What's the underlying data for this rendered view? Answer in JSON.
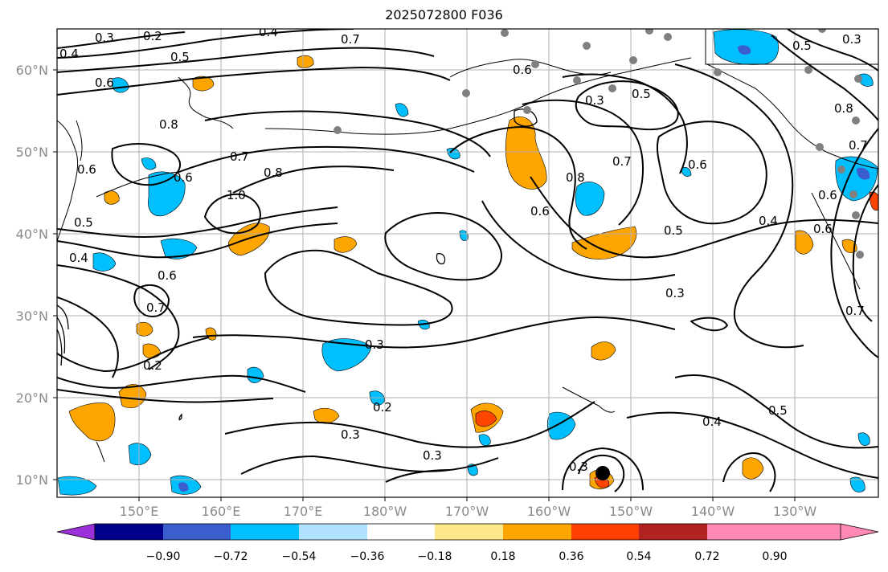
{
  "title": "2025072800 F036",
  "lat_labels": [
    "60°N",
    "50°N",
    "40°N",
    "30°N",
    "20°N",
    "10°N"
  ],
  "lon_labels": [
    "150°E",
    "160°E",
    "170°E",
    "180°W",
    "170°W",
    "160°W",
    "150°W",
    "140°W",
    "130°W"
  ],
  "contour_labels": [
    "0.3",
    "0.2",
    "0.4",
    "0.7",
    "0.5",
    "0.6",
    "0.4",
    "0.6",
    "0.8",
    "0.7",
    "0.8",
    "0.6",
    "1.0",
    "0.5",
    "0.4",
    "0.6",
    "0.6",
    "0.7",
    "0.2",
    "0.3",
    "0.2",
    "0.3",
    "0.3",
    "0.8",
    "0.6",
    "0.7",
    "0.5",
    "0.3",
    "0.6",
    "0.5",
    "0.4",
    "0.5",
    "0.3",
    "0.4",
    "0.3",
    "0.6",
    "0.7",
    "0.7",
    "0.5",
    "0.8",
    "0.3",
    "0.6"
  ],
  "colorbar": {
    "tick_labels": [
      "−0.90",
      "−0.72",
      "−0.54",
      "−0.36",
      "−0.18",
      "0.18",
      "0.36",
      "0.54",
      "0.72",
      "0.90"
    ],
    "colors": [
      "#9b30d9",
      "#00008b",
      "#3a5fcd",
      "#00bfff",
      "#b0e2ff",
      "#ffffff",
      "#fce88a",
      "#ffa500",
      "#ff4000",
      "#b22222",
      "#ff88b4"
    ]
  },
  "palette": {
    "orange": "#ffa500",
    "red": "#ff4500",
    "blue": "#00bfff",
    "deep_blue": "#3a5fcd",
    "station": "#808080"
  }
}
